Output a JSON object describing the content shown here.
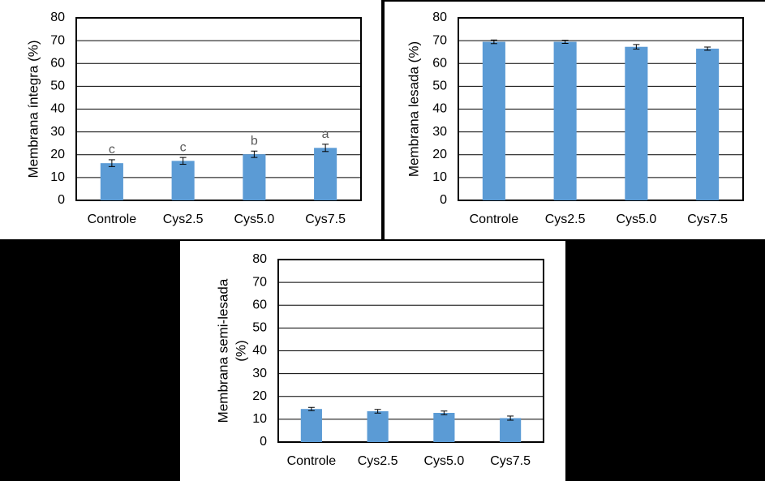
{
  "chart_data": [
    {
      "type": "bar",
      "ylabel": [
        "Membrana íntegra (%)"
      ],
      "categories": [
        "Controle",
        "Cys2.5",
        "Cys5.0",
        "Cys7.5"
      ],
      "values": [
        16.3,
        17.3,
        20.2,
        23.0
      ],
      "errors": [
        1.5,
        1.5,
        1.4,
        1.6
      ],
      "annotations": [
        "c",
        "c",
        "b",
        "a"
      ],
      "color": "#5b9bd5",
      "ylim": [
        0,
        80
      ],
      "yticks": [
        0,
        10,
        20,
        30,
        40,
        50,
        60,
        70,
        80
      ],
      "grid": true
    },
    {
      "type": "bar",
      "ylabel": [
        "Membrana lesada (%)"
      ],
      "categories": [
        "Controle",
        "Cys2.5",
        "Cys5.0",
        "Cys7.5"
      ],
      "values": [
        69.5,
        69.5,
        67.3,
        66.5
      ],
      "errors": [
        0.8,
        0.7,
        1.0,
        0.7
      ],
      "color": "#5b9bd5",
      "ylim": [
        0,
        80
      ],
      "yticks": [
        0,
        10,
        20,
        30,
        40,
        50,
        60,
        70,
        80
      ],
      "grid": true
    },
    {
      "type": "bar",
      "ylabel": [
        "Membrana semi-lesada",
        "(%)"
      ],
      "categories": [
        "Controle",
        "Cys2.5",
        "Cys5.0",
        "Cys7.5"
      ],
      "values": [
        14.5,
        13.5,
        12.8,
        10.5
      ],
      "errors": [
        0.7,
        0.8,
        0.8,
        0.9
      ],
      "color": "#5b9bd5",
      "ylim": [
        0,
        80
      ],
      "yticks": [
        0,
        10,
        20,
        30,
        40,
        50,
        60,
        70,
        80
      ],
      "grid": true
    }
  ]
}
